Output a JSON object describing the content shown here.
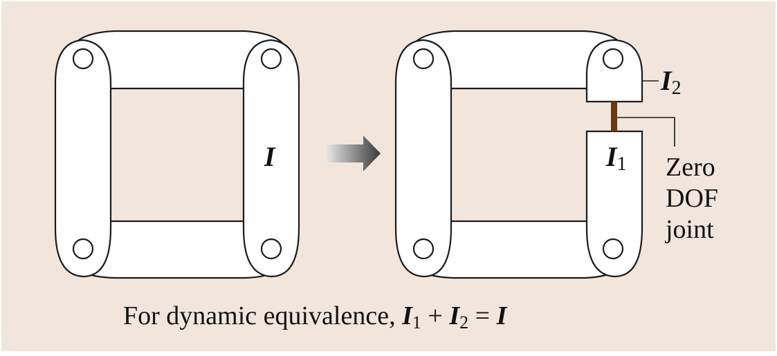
{
  "labels": {
    "left_inertia": "I",
    "i2_symbol": "I",
    "i2_sub": "2",
    "i1_symbol": "I",
    "i1_sub": "1",
    "joint_line1": "Zero",
    "joint_line2": "DOF",
    "joint_line3": "joint"
  },
  "caption": {
    "prefix": "For dynamic equivalence, ",
    "t1": "I",
    "s1": "1",
    "plus": " + ",
    "t2": "I",
    "s2": "2",
    "eq": " = ",
    "t3": "I"
  },
  "colors": {
    "background": "#f2e6dc",
    "joint_bar": "#6b3a12",
    "arrow_dark": "#3a3a3a",
    "arrow_light": "#e6e6e6"
  }
}
